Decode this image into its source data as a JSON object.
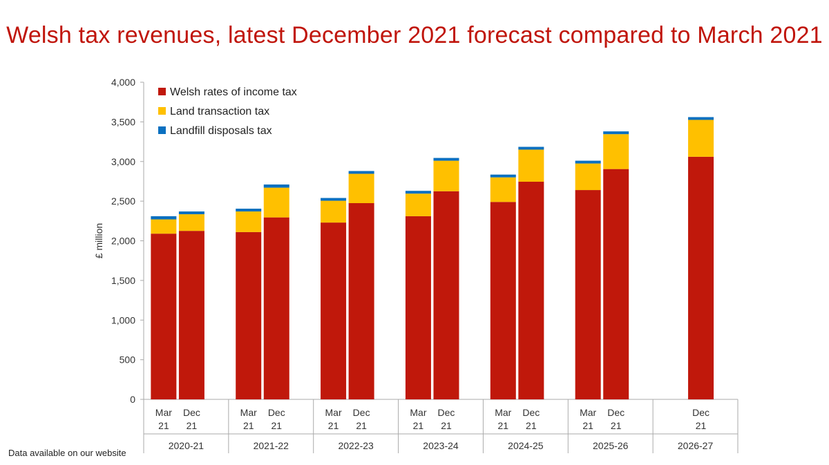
{
  "title": "Welsh tax revenues, latest December 2021 forecast compared to March 2021",
  "footnote": "Data available on our website",
  "chart_data": {
    "type": "bar",
    "stacked": true,
    "title": "Welsh tax revenues, latest December 2021 forecast compared to March 2021",
    "xlabel": "",
    "ylabel": "£ million",
    "ylim": [
      0,
      4000
    ],
    "yticks": [
      0,
      500,
      1000,
      1500,
      2000,
      2500,
      3000,
      3500,
      4000
    ],
    "ytick_labels": [
      "0",
      "500",
      "1,000",
      "1,500",
      "2,000",
      "2,500",
      "3,000",
      "3,500",
      "4,000"
    ],
    "grid": false,
    "legend_position": "top-left",
    "groups": [
      {
        "label": "2020-21",
        "bars": [
          {
            "line1": "Mar",
            "line2": "21",
            "values": [
              2090,
              180,
              40
            ]
          },
          {
            "line1": "Dec",
            "line2": "21",
            "values": [
              2125,
              210,
              35
            ]
          }
        ]
      },
      {
        "label": "2021-22",
        "bars": [
          {
            "line1": "Mar",
            "line2": "21",
            "values": [
              2110,
              260,
              35
            ]
          },
          {
            "line1": "Dec",
            "line2": "21",
            "values": [
              2295,
              375,
              40
            ]
          }
        ]
      },
      {
        "label": "2022-23",
        "bars": [
          {
            "line1": "Mar",
            "line2": "21",
            "values": [
              2230,
              275,
              35
            ]
          },
          {
            "line1": "Dec",
            "line2": "21",
            "values": [
              2475,
              370,
              35
            ]
          }
        ]
      },
      {
        "label": "2023-24",
        "bars": [
          {
            "line1": "Mar",
            "line2": "21",
            "values": [
              2310,
              285,
              35
            ]
          },
          {
            "line1": "Dec",
            "line2": "21",
            "values": [
              2625,
              385,
              35
            ]
          }
        ]
      },
      {
        "label": "2024-25",
        "bars": [
          {
            "line1": "Mar",
            "line2": "21",
            "values": [
              2490,
              310,
              35
            ]
          },
          {
            "line1": "Dec",
            "line2": "21",
            "values": [
              2745,
              405,
              35
            ]
          }
        ]
      },
      {
        "label": "2025-26",
        "bars": [
          {
            "line1": "Mar",
            "line2": "21",
            "values": [
              2640,
              335,
              35
            ]
          },
          {
            "line1": "Dec",
            "line2": "21",
            "values": [
              2905,
              440,
              35
            ]
          }
        ]
      },
      {
        "label": "2026-27",
        "bars": [
          null,
          {
            "line1": "Dec",
            "line2": "21",
            "values": [
              3060,
              465,
              35
            ]
          }
        ]
      }
    ],
    "series": [
      {
        "name": "Welsh rates of income tax",
        "color": "#c0180b"
      },
      {
        "name": "Land transaction tax",
        "color": "#ffc000"
      },
      {
        "name": "Landfill disposals tax",
        "color": "#0a70c0"
      }
    ]
  }
}
